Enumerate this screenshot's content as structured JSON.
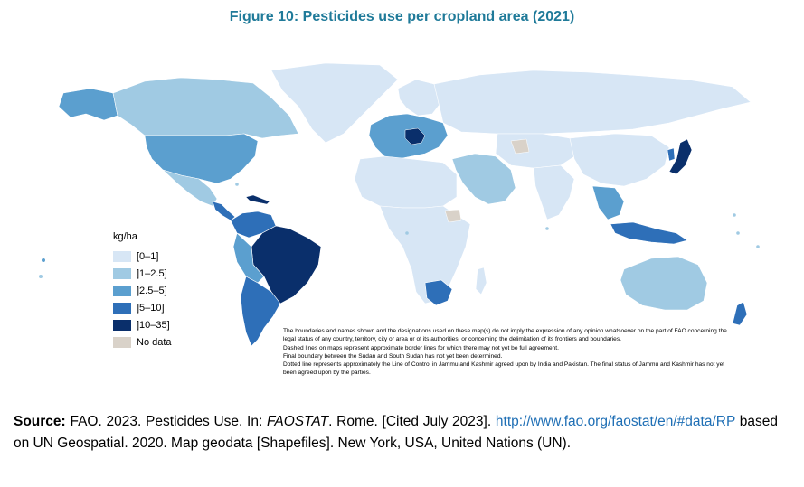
{
  "figure": {
    "title": "Figure 10: Pesticides use per cropland area (2021)"
  },
  "legend": {
    "title": "kg/ha",
    "items": [
      {
        "label": "[0–1]",
        "color": "#d7e6f5"
      },
      {
        "label": "]1–2.5]",
        "color": "#a0cae3"
      },
      {
        "label": "]2.5–5]",
        "color": "#5b9fcf"
      },
      {
        "label": "]5–10]",
        "color": "#2e6fb8"
      },
      {
        "label": "]10–35]",
        "color": "#0a2f6b"
      },
      {
        "label": "No data",
        "color": "#d9d2c9"
      }
    ]
  },
  "disclaimer": {
    "line1": "The boundaries and names shown and the designations used on these map(s) do not imply the expression of any opinion whatsoever on the part of FAO concerning the legal status of any country, territory, city or area or of its authorities, or concerning the delimitation of its frontiers and boundaries.",
    "line2": "Dashed lines on maps represent approximate border lines for which there may not yet be full agreement.",
    "line3": "Final boundary between the Sudan and South Sudan has not yet been determined.",
    "line4": "Dotted line represents approximately the Line of Control in Jammu and Kashmir agreed upon by India and Pakistan. The final status of Jammu and Kashmir has not yet been agreed upon by the parties."
  },
  "source": {
    "label": "Source:",
    "text1": "FAO. 2023. Pesticides Use. In:",
    "italic": "FAOSTAT",
    "text2": ". Rome. [Cited July 2023].",
    "link": "http://www.fao.org/faostat/en/#data/RP",
    "text3": "based on UN Geospatial. 2020. Map geodata [Shapefiles]. New York, USA, United Nations (UN)."
  }
}
